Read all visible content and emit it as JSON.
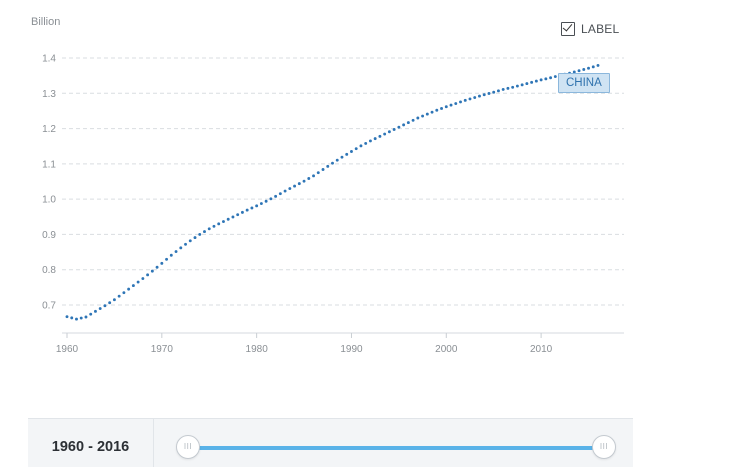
{
  "chart_data": {
    "type": "line",
    "ylabel": "Billion",
    "xlim": [
      1960,
      2016
    ],
    "ylim": [
      0.62,
      1.4
    ],
    "yticks": [
      "0.7",
      "0.8",
      "0.9",
      "1.0",
      "1.1",
      "1.2",
      "1.3",
      "1.4"
    ],
    "xticks": [
      "1960",
      "1970",
      "1980",
      "1990",
      "2000",
      "2010"
    ],
    "grid": true,
    "line_style": "dotted",
    "series": [
      {
        "name": "CHINA",
        "color": "#2e75b6",
        "x": [
          1960,
          1961,
          1962,
          1963,
          1964,
          1965,
          1966,
          1967,
          1968,
          1969,
          1970,
          1971,
          1972,
          1973,
          1974,
          1975,
          1976,
          1977,
          1978,
          1979,
          1980,
          1981,
          1982,
          1983,
          1984,
          1985,
          1986,
          1987,
          1988,
          1989,
          1990,
          1991,
          1992,
          1993,
          1994,
          1995,
          1996,
          1997,
          1998,
          1999,
          2000,
          2001,
          2002,
          2003,
          2004,
          2005,
          2006,
          2007,
          2008,
          2009,
          2010,
          2011,
          2012,
          2013,
          2014,
          2015,
          2016
        ],
        "y": [
          0.667,
          0.66,
          0.666,
          0.682,
          0.698,
          0.715,
          0.735,
          0.755,
          0.775,
          0.796,
          0.818,
          0.841,
          0.862,
          0.882,
          0.9,
          0.916,
          0.93,
          0.943,
          0.956,
          0.969,
          0.981,
          0.994,
          1.008,
          1.023,
          1.037,
          1.051,
          1.066,
          1.084,
          1.102,
          1.119,
          1.135,
          1.151,
          1.165,
          1.178,
          1.191,
          1.204,
          1.217,
          1.23,
          1.241,
          1.252,
          1.262,
          1.271,
          1.28,
          1.288,
          1.296,
          1.303,
          1.311,
          1.317,
          1.324,
          1.331,
          1.338,
          1.344,
          1.351,
          1.357,
          1.364,
          1.371,
          1.379
        ]
      }
    ]
  },
  "controls": {
    "label_toggle": "LABEL",
    "label_checked": true,
    "range_text": "1960 - 2016",
    "range_start": 1960,
    "range_end": 2016,
    "slider_color": "#59b2e8"
  }
}
